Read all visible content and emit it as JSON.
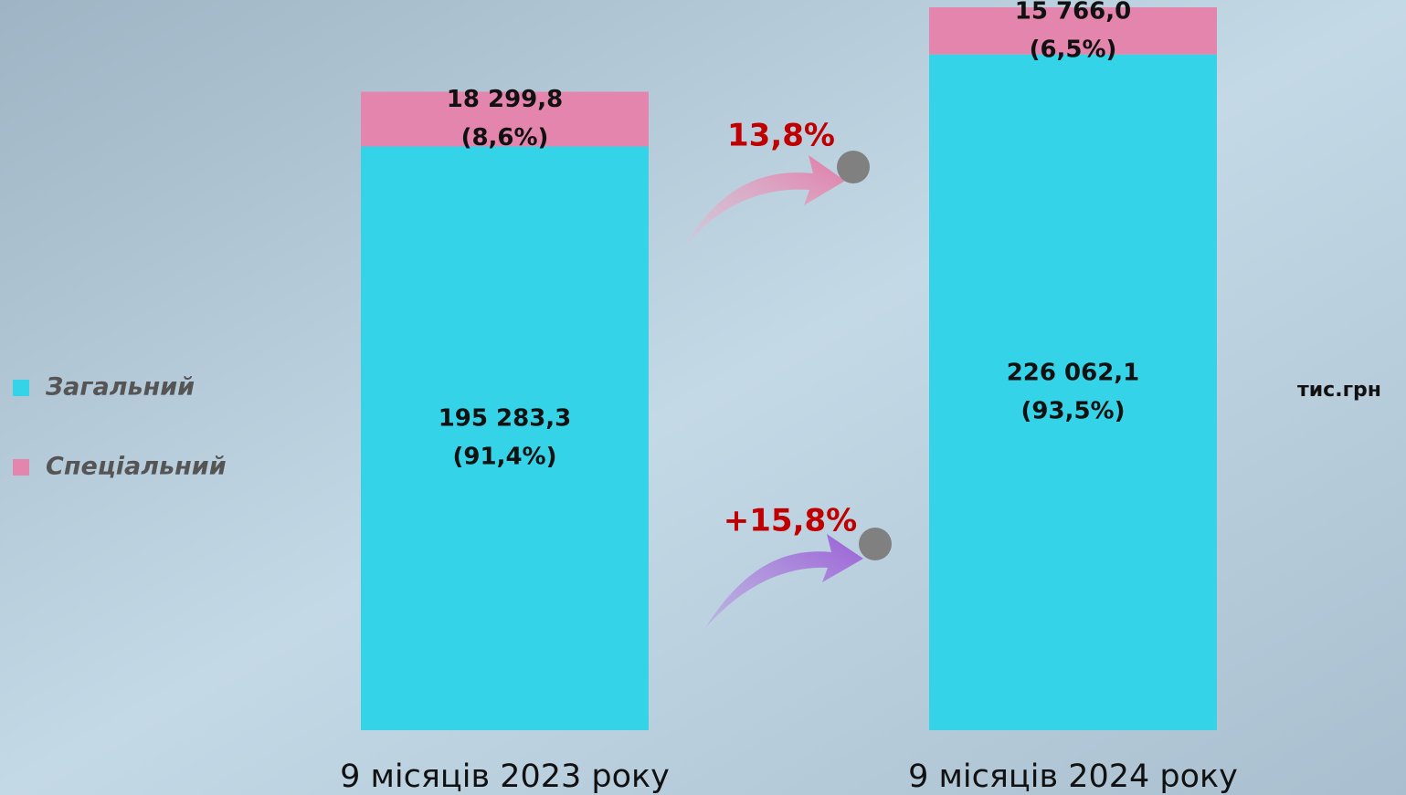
{
  "chart_data": {
    "type": "stacked_bar",
    "categories": [
      "9 місяців 2023 року",
      "9 місяців 2024 року"
    ],
    "series": [
      {
        "name": "Загальний",
        "color": "#35d3e8",
        "values": [
          195283.3,
          226062.1
        ],
        "value_labels": [
          "195 283,3",
          "226 062,1"
        ],
        "shares": [
          91.4,
          93.5
        ],
        "share_labels": [
          "(91,4%)",
          "(93,5%)"
        ]
      },
      {
        "name": "Спеціальний",
        "color": "#e385ad",
        "values": [
          18299.8,
          15766.0
        ],
        "value_labels": [
          "18 299,8",
          "15 766,0"
        ],
        "shares": [
          8.6,
          6.5
        ],
        "share_labels": [
          "(8,6%)",
          "(6,5%)"
        ]
      }
    ],
    "annotations": [
      "13,8%",
      "+15,8%"
    ],
    "unit": "тис.грн",
    "legend": "left"
  }
}
